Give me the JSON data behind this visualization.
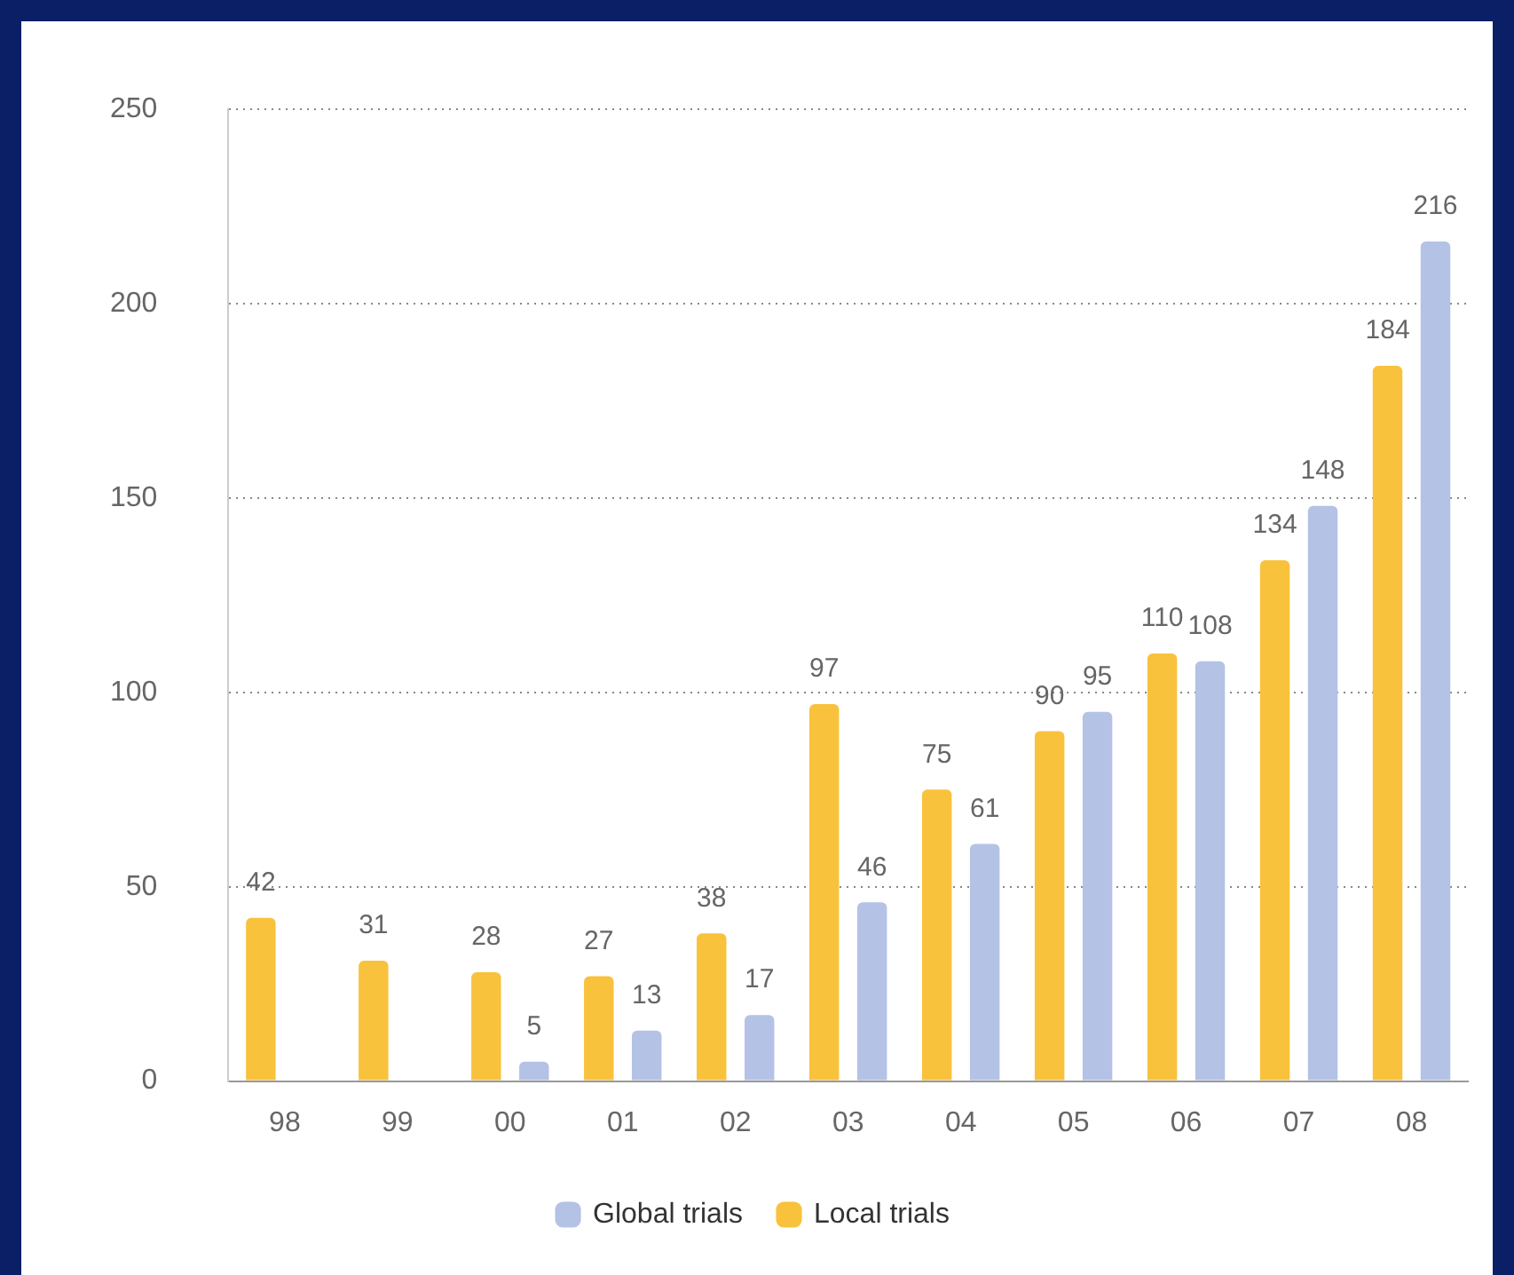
{
  "chart_data": {
    "type": "bar",
    "categories": [
      "98",
      "99",
      "00",
      "01",
      "02",
      "03",
      "04",
      "05",
      "06",
      "07",
      "08"
    ],
    "series": [
      {
        "name": "Local trials",
        "color": "#f9c23c",
        "values": [
          42,
          31,
          28,
          27,
          38,
          97,
          75,
          90,
          110,
          134,
          184
        ]
      },
      {
        "name": "Global trials",
        "color": "#b4c2e6",
        "values": [
          null,
          null,
          5,
          13,
          17,
          46,
          61,
          95,
          108,
          148,
          216
        ]
      }
    ],
    "ylim": [
      0,
      250
    ],
    "yticks": [
      0,
      50,
      100,
      150,
      200,
      250
    ],
    "grid": "y",
    "legend": "bottom",
    "data_labels": true
  }
}
